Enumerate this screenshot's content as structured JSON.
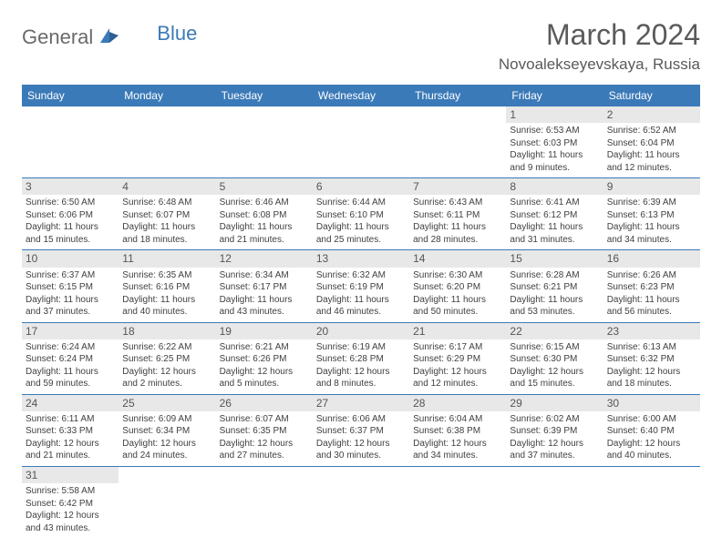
{
  "logo": {
    "part1": "General",
    "part2": "Blue"
  },
  "title": "March 2024",
  "location": "Novoalekseyevskaya, Russia",
  "colors": {
    "header_bg": "#3b7ab8",
    "header_text": "#ffffff",
    "daynum_bg": "#e8e8e8",
    "border": "#3b7ab8",
    "text": "#404040"
  },
  "day_labels": [
    "Sunday",
    "Monday",
    "Tuesday",
    "Wednesday",
    "Thursday",
    "Friday",
    "Saturday"
  ],
  "weeks": [
    [
      null,
      null,
      null,
      null,
      null,
      {
        "n": "1",
        "sr": "Sunrise: 6:53 AM",
        "ss": "Sunset: 6:03 PM",
        "d1": "Daylight: 11 hours",
        "d2": "and 9 minutes."
      },
      {
        "n": "2",
        "sr": "Sunrise: 6:52 AM",
        "ss": "Sunset: 6:04 PM",
        "d1": "Daylight: 11 hours",
        "d2": "and 12 minutes."
      }
    ],
    [
      {
        "n": "3",
        "sr": "Sunrise: 6:50 AM",
        "ss": "Sunset: 6:06 PM",
        "d1": "Daylight: 11 hours",
        "d2": "and 15 minutes."
      },
      {
        "n": "4",
        "sr": "Sunrise: 6:48 AM",
        "ss": "Sunset: 6:07 PM",
        "d1": "Daylight: 11 hours",
        "d2": "and 18 minutes."
      },
      {
        "n": "5",
        "sr": "Sunrise: 6:46 AM",
        "ss": "Sunset: 6:08 PM",
        "d1": "Daylight: 11 hours",
        "d2": "and 21 minutes."
      },
      {
        "n": "6",
        "sr": "Sunrise: 6:44 AM",
        "ss": "Sunset: 6:10 PM",
        "d1": "Daylight: 11 hours",
        "d2": "and 25 minutes."
      },
      {
        "n": "7",
        "sr": "Sunrise: 6:43 AM",
        "ss": "Sunset: 6:11 PM",
        "d1": "Daylight: 11 hours",
        "d2": "and 28 minutes."
      },
      {
        "n": "8",
        "sr": "Sunrise: 6:41 AM",
        "ss": "Sunset: 6:12 PM",
        "d1": "Daylight: 11 hours",
        "d2": "and 31 minutes."
      },
      {
        "n": "9",
        "sr": "Sunrise: 6:39 AM",
        "ss": "Sunset: 6:13 PM",
        "d1": "Daylight: 11 hours",
        "d2": "and 34 minutes."
      }
    ],
    [
      {
        "n": "10",
        "sr": "Sunrise: 6:37 AM",
        "ss": "Sunset: 6:15 PM",
        "d1": "Daylight: 11 hours",
        "d2": "and 37 minutes."
      },
      {
        "n": "11",
        "sr": "Sunrise: 6:35 AM",
        "ss": "Sunset: 6:16 PM",
        "d1": "Daylight: 11 hours",
        "d2": "and 40 minutes."
      },
      {
        "n": "12",
        "sr": "Sunrise: 6:34 AM",
        "ss": "Sunset: 6:17 PM",
        "d1": "Daylight: 11 hours",
        "d2": "and 43 minutes."
      },
      {
        "n": "13",
        "sr": "Sunrise: 6:32 AM",
        "ss": "Sunset: 6:19 PM",
        "d1": "Daylight: 11 hours",
        "d2": "and 46 minutes."
      },
      {
        "n": "14",
        "sr": "Sunrise: 6:30 AM",
        "ss": "Sunset: 6:20 PM",
        "d1": "Daylight: 11 hours",
        "d2": "and 50 minutes."
      },
      {
        "n": "15",
        "sr": "Sunrise: 6:28 AM",
        "ss": "Sunset: 6:21 PM",
        "d1": "Daylight: 11 hours",
        "d2": "and 53 minutes."
      },
      {
        "n": "16",
        "sr": "Sunrise: 6:26 AM",
        "ss": "Sunset: 6:23 PM",
        "d1": "Daylight: 11 hours",
        "d2": "and 56 minutes."
      }
    ],
    [
      {
        "n": "17",
        "sr": "Sunrise: 6:24 AM",
        "ss": "Sunset: 6:24 PM",
        "d1": "Daylight: 11 hours",
        "d2": "and 59 minutes."
      },
      {
        "n": "18",
        "sr": "Sunrise: 6:22 AM",
        "ss": "Sunset: 6:25 PM",
        "d1": "Daylight: 12 hours",
        "d2": "and 2 minutes."
      },
      {
        "n": "19",
        "sr": "Sunrise: 6:21 AM",
        "ss": "Sunset: 6:26 PM",
        "d1": "Daylight: 12 hours",
        "d2": "and 5 minutes."
      },
      {
        "n": "20",
        "sr": "Sunrise: 6:19 AM",
        "ss": "Sunset: 6:28 PM",
        "d1": "Daylight: 12 hours",
        "d2": "and 8 minutes."
      },
      {
        "n": "21",
        "sr": "Sunrise: 6:17 AM",
        "ss": "Sunset: 6:29 PM",
        "d1": "Daylight: 12 hours",
        "d2": "and 12 minutes."
      },
      {
        "n": "22",
        "sr": "Sunrise: 6:15 AM",
        "ss": "Sunset: 6:30 PM",
        "d1": "Daylight: 12 hours",
        "d2": "and 15 minutes."
      },
      {
        "n": "23",
        "sr": "Sunrise: 6:13 AM",
        "ss": "Sunset: 6:32 PM",
        "d1": "Daylight: 12 hours",
        "d2": "and 18 minutes."
      }
    ],
    [
      {
        "n": "24",
        "sr": "Sunrise: 6:11 AM",
        "ss": "Sunset: 6:33 PM",
        "d1": "Daylight: 12 hours",
        "d2": "and 21 minutes."
      },
      {
        "n": "25",
        "sr": "Sunrise: 6:09 AM",
        "ss": "Sunset: 6:34 PM",
        "d1": "Daylight: 12 hours",
        "d2": "and 24 minutes."
      },
      {
        "n": "26",
        "sr": "Sunrise: 6:07 AM",
        "ss": "Sunset: 6:35 PM",
        "d1": "Daylight: 12 hours",
        "d2": "and 27 minutes."
      },
      {
        "n": "27",
        "sr": "Sunrise: 6:06 AM",
        "ss": "Sunset: 6:37 PM",
        "d1": "Daylight: 12 hours",
        "d2": "and 30 minutes."
      },
      {
        "n": "28",
        "sr": "Sunrise: 6:04 AM",
        "ss": "Sunset: 6:38 PM",
        "d1": "Daylight: 12 hours",
        "d2": "and 34 minutes."
      },
      {
        "n": "29",
        "sr": "Sunrise: 6:02 AM",
        "ss": "Sunset: 6:39 PM",
        "d1": "Daylight: 12 hours",
        "d2": "and 37 minutes."
      },
      {
        "n": "30",
        "sr": "Sunrise: 6:00 AM",
        "ss": "Sunset: 6:40 PM",
        "d1": "Daylight: 12 hours",
        "d2": "and 40 minutes."
      }
    ],
    [
      {
        "n": "31",
        "sr": "Sunrise: 5:58 AM",
        "ss": "Sunset: 6:42 PM",
        "d1": "Daylight: 12 hours",
        "d2": "and 43 minutes."
      },
      null,
      null,
      null,
      null,
      null,
      null
    ]
  ]
}
